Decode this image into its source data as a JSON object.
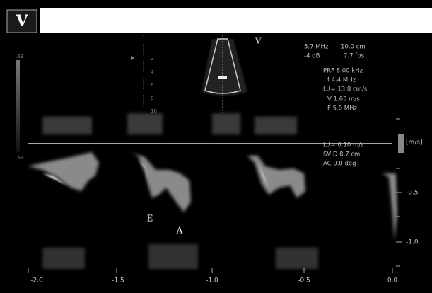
{
  "header": {
    "logo": "V"
  },
  "probe_marker": "V",
  "gain_labels": [
    ".69",
    ".69"
  ],
  "depth_scale": [
    "2",
    "4",
    "6",
    "8",
    "10"
  ],
  "parameters": [
    "5.7 MHz",
    "10.0 cm",
    "-4 dB",
    "7.7 fps",
    "PRF 8.00 kHz",
    "f 4.4 MHz",
    "LU= 13.8 cm/s",
    "V 1.65 m/s",
    "F 5.0 MHz",
    "LU= 0.10 m/s",
    "SV D 8.7 cm",
    "AC 0.0 deg"
  ],
  "velocity_axis": {
    "unit": "[m/s]",
    "labels": [
      "-0.5",
      "-1.0"
    ]
  },
  "time_axis": {
    "labels": [
      "-2.0",
      "-1.5",
      "-1.0",
      "-0.5",
      "0.0"
    ]
  },
  "annotations": [
    "E",
    "A"
  ]
}
